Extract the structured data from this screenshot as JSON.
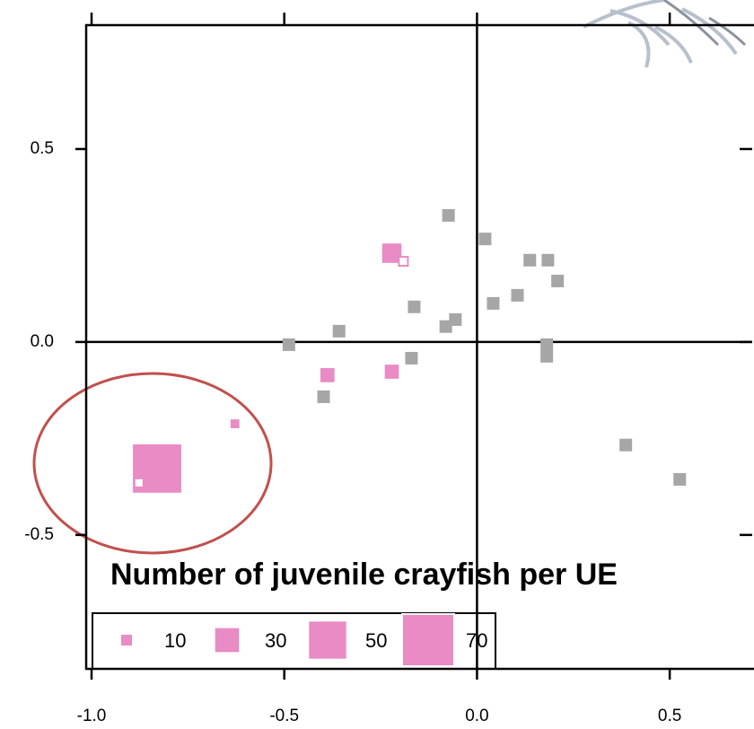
{
  "chart_data": {
    "type": "scatter",
    "xlim": [
      -1.014,
      0.714
    ],
    "ylim": [
      -0.847,
      0.821
    ],
    "xticks": [
      {
        "value": -1,
        "label": "-1.0"
      },
      -0.5,
      {
        "value": 0,
        "label": "0.0"
      },
      0.5
    ],
    "yticks": [
      -0.5,
      {
        "value": 0,
        "label": "0.0"
      },
      0.5
    ],
    "series": [
      {
        "color": "#a6a6a6",
        "x": [
          -0.074,
          0.021,
          0.137,
          0.184,
          0.209,
          0.105,
          0.042,
          -0.163,
          -0.056,
          -0.081,
          -0.358,
          -0.488,
          0.181,
          0.181,
          -0.17,
          -0.398,
          0.386,
          0.526
        ],
        "values": [
          0.328,
          0.267,
          0.212,
          0.212,
          0.158,
          0.121,
          0.1,
          0.091,
          0.058,
          0.04,
          0.028,
          -0.007,
          -0.007,
          -0.037,
          -0.042,
          -0.142,
          -0.267,
          -0.356
        ]
      },
      {
        "color": "#e98bc4",
        "x": [
          -0.221,
          -0.388,
          -0.221,
          -0.628,
          -0.83
        ],
        "values": [
          0.23,
          -0.086,
          -0.077,
          -0.212,
          -0.328
        ],
        "sizes": [
          23,
          15,
          15,
          7,
          67
        ]
      },
      {
        "color": "#ffffff",
        "x": [
          -0.191,
          -0.877
        ],
        "values": [
          0.209,
          -0.365
        ]
      }
    ],
    "size_legend": {
      "title": "Number of juvenile crayfish per UE",
      "values": [
        10,
        30,
        50,
        70
      ]
    }
  }
}
